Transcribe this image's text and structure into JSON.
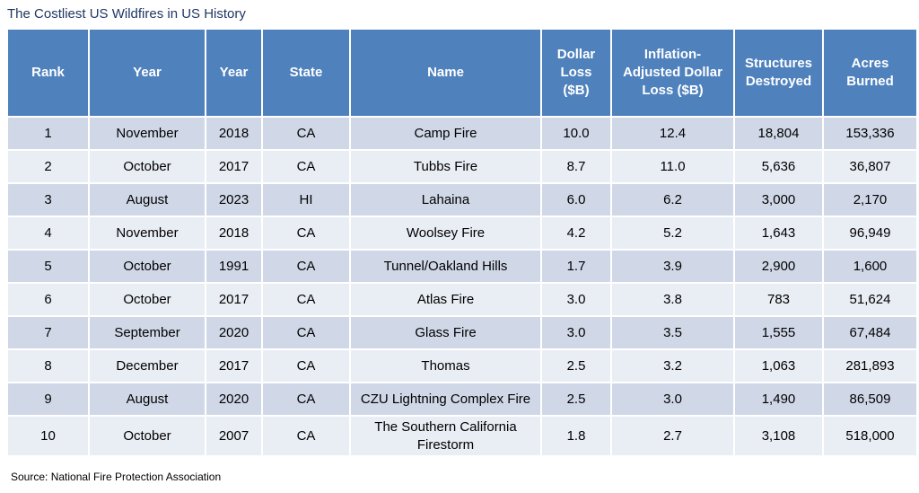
{
  "title": "The Costliest US Wildfires in US History",
  "table": {
    "header": [
      "Rank",
      "Year",
      "Year",
      "State",
      "Name",
      "Dollar Loss ($B)",
      "Inflation-Adjusted Dollar Loss ($B)",
      "Structures Destroyed",
      "Acres Burned"
    ],
    "rows": [
      [
        "1",
        "November",
        "2018",
        "CA",
        "Camp Fire",
        "10.0",
        "12.4",
        "18,804",
        "153,336"
      ],
      [
        "2",
        "October",
        "2017",
        "CA",
        "Tubbs Fire",
        "8.7",
        "11.0",
        "5,636",
        "36,807"
      ],
      [
        "3",
        "August",
        "2023",
        "HI",
        "Lahaina",
        "6.0",
        "6.2",
        "3,000",
        "2,170"
      ],
      [
        "4",
        "November",
        "2018",
        "CA",
        "Woolsey Fire",
        "4.2",
        "5.2",
        "1,643",
        "96,949"
      ],
      [
        "5",
        "October",
        "1991",
        "CA",
        "Tunnel/Oakland Hills",
        "1.7",
        "3.9",
        "2,900",
        "1,600"
      ],
      [
        "6",
        "October",
        "2017",
        "CA",
        "Atlas Fire",
        "3.0",
        "3.8",
        "783",
        "51,624"
      ],
      [
        "7",
        "September",
        "2020",
        "CA",
        "Glass Fire",
        "3.0",
        "3.5",
        "1,555",
        "67,484"
      ],
      [
        "8",
        "December",
        "2017",
        "CA",
        "Thomas",
        "2.5",
        "3.2",
        "1,063",
        "281,893"
      ],
      [
        "9",
        "August",
        "2020",
        "CA",
        "CZU Lightning Complex Fire",
        "2.5",
        "3.0",
        "1,490",
        "86,509"
      ],
      [
        "10",
        "October",
        "2007",
        "CA",
        "The Southern California Firestorm",
        "1.8",
        "2.7",
        "3,108",
        "518,000"
      ]
    ]
  },
  "source": "Source: National Fire Protection Association"
}
